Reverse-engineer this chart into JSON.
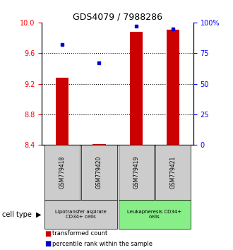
{
  "title": "GDS4079 / 7988286",
  "samples": [
    "GSM779418",
    "GSM779420",
    "GSM779419",
    "GSM779421"
  ],
  "transformed_count": [
    9.28,
    8.41,
    9.88,
    9.91
  ],
  "percentile_rank": [
    82,
    67,
    97,
    95
  ],
  "ylim_left": [
    8.4,
    10.0
  ],
  "ylim_right": [
    0,
    100
  ],
  "yticks_left": [
    8.4,
    8.8,
    9.2,
    9.6,
    10.0
  ],
  "yticks_right": [
    0,
    25,
    50,
    75,
    100
  ],
  "ytick_labels_right": [
    "0",
    "25",
    "50",
    "75",
    "100%"
  ],
  "bar_color": "#cc0000",
  "dot_color": "#0000cc",
  "bar_bottom": 8.4,
  "group_info": [
    {
      "span": [
        0,
        2
      ],
      "color": "#cccccc",
      "label": "Lipotransfer aspirate\nCD34+ cells"
    },
    {
      "span": [
        2,
        4
      ],
      "color": "#88ee88",
      "label": "Leukapheresis CD34+\ncells"
    }
  ],
  "cell_type_label": "cell type",
  "legend_bar_label": "transformed count",
  "legend_dot_label": "percentile rank within the sample",
  "fig_width": 3.3,
  "fig_height": 3.54,
  "dpi": 100
}
